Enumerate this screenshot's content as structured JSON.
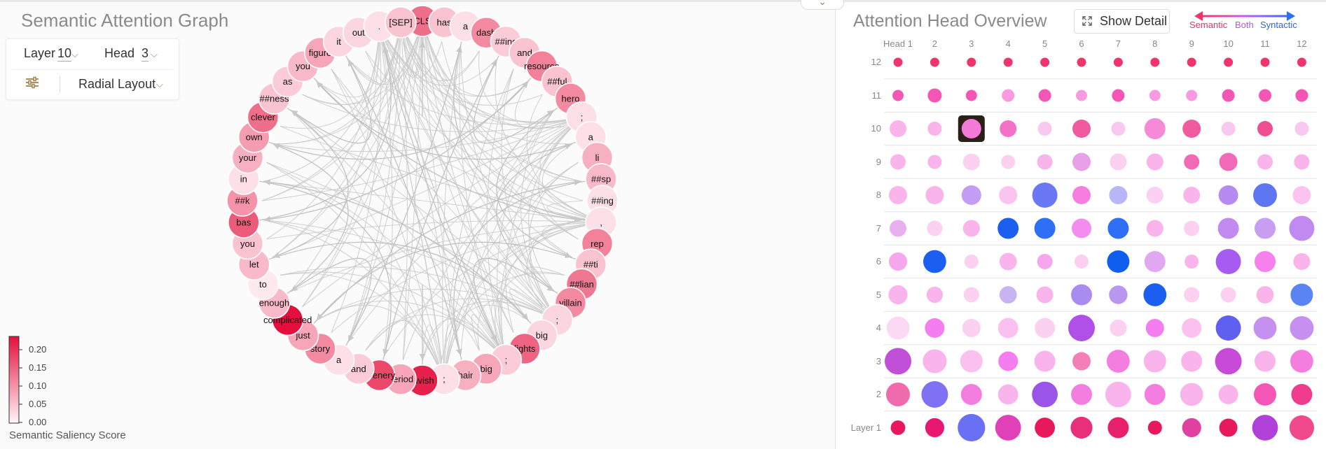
{
  "left": {
    "title": "Semantic Attention Graph",
    "controls": {
      "layer_label": "Layer",
      "layer_value": "10",
      "head_label": "Head",
      "head_value": "3",
      "layout_value": "Radial Layout",
      "settings_icon": "sliders-icon",
      "chevron_icon": "chevron-down-icon"
    },
    "tokens": [
      "[CLS]",
      "has",
      "a",
      "dash",
      "##ing",
      "and",
      "resource",
      "##ful",
      "hero",
      ";",
      "a",
      "li",
      "##sp",
      "##ing",
      ",",
      "rep",
      "##ti",
      "##lian",
      "villain",
      ";",
      "big",
      "fights",
      ";",
      "big",
      "hair",
      ";",
      "lavish",
      "period",
      "scenery",
      "and",
      "a",
      "story",
      "just",
      "complicated",
      "enough",
      "to",
      "let",
      "you",
      "bas",
      "##k",
      "in",
      "your",
      "own",
      "clever",
      "##ness",
      "as",
      "you",
      "figure",
      "it",
      "out",
      ".",
      "[SEP]"
    ],
    "saliency": [
      0.14,
      0.05,
      0.02,
      0.11,
      0.04,
      0.05,
      0.12,
      0.05,
      0.11,
      0.02,
      0.02,
      0.07,
      0.06,
      0.02,
      0.02,
      0.12,
      0.05,
      0.13,
      0.11,
      0.03,
      0.03,
      0.15,
      0.04,
      0.08,
      0.07,
      0.02,
      0.22,
      0.08,
      0.18,
      0.04,
      0.02,
      0.11,
      0.08,
      0.24,
      0.06,
      0.01,
      0.06,
      0.05,
      0.16,
      0.1,
      0.02,
      0.07,
      0.09,
      0.14,
      0.05,
      0.04,
      0.06,
      0.08,
      0.03,
      0.03,
      0.02,
      0.05
    ],
    "legend": {
      "title": "Semantic Saliency Score",
      "ticks": [
        "0.20",
        "0.15",
        "0.10",
        "0.05",
        "0.00"
      ],
      "color_low": "#fff0f4",
      "color_high": "#e40f3c"
    }
  },
  "right": {
    "title": "Attention Head Overview",
    "detail_button": "Show Detail",
    "detail_icon": "expand-icon",
    "legend": {
      "semantic": "Semantic",
      "both": "Both",
      "syntactic": "Syntactic"
    },
    "head_labels": [
      "Head 1",
      "2",
      "3",
      "4",
      "5",
      "6",
      "7",
      "8",
      "9",
      "10",
      "11",
      "12"
    ],
    "layer_labels": [
      "12",
      "11",
      "10",
      "9",
      "8",
      "7",
      "6",
      "5",
      "4",
      "3",
      "2",
      "Layer 1"
    ],
    "selected": {
      "layer": "10",
      "head": "3"
    },
    "colors": {
      "semantic": "#f0356e",
      "both": "#c95bf0",
      "syntactic": "#2f6ff5",
      "light_pink": "#fbc6ec"
    },
    "heads": [
      [
        [
          "#f0356e",
          0.3
        ],
        [
          "#f0356e",
          0.3
        ],
        [
          "#f0356e",
          0.3
        ],
        [
          "#f0356e",
          0.3
        ],
        [
          "#f0356e",
          0.3
        ],
        [
          "#f0356e",
          0.3
        ],
        [
          "#f0356e",
          0.3
        ],
        [
          "#f0356e",
          0.3
        ],
        [
          "#f0356e",
          0.3
        ],
        [
          "#f0356e",
          0.3
        ],
        [
          "#f0356e",
          0.3
        ],
        [
          "#f0356e",
          0.3
        ]
      ],
      [
        [
          "#f456b5",
          0.4
        ],
        [
          "#f456b5",
          0.5
        ],
        [
          "#f456b5",
          0.4
        ],
        [
          "#f89ae0",
          0.45
        ],
        [
          "#f456b5",
          0.45
        ],
        [
          "#f89ae0",
          0.4
        ],
        [
          "#f456b5",
          0.45
        ],
        [
          "#f89ae0",
          0.4
        ],
        [
          "#f89ae0",
          0.4
        ],
        [
          "#f456b5",
          0.45
        ],
        [
          "#f456b5",
          0.45
        ],
        [
          "#f456b5",
          0.45
        ]
      ],
      [
        [
          "#f9b4ec",
          0.6
        ],
        [
          "#f9b4ec",
          0.5
        ],
        [
          "#f37ad6",
          0.7
        ],
        [
          "#f472c6",
          0.6
        ],
        [
          "#f9c8f0",
          0.5
        ],
        [
          "#f05a9e",
          0.65
        ],
        [
          "#f9c8f0",
          0.5
        ],
        [
          "#f58ad8",
          0.75
        ],
        [
          "#f05a9e",
          0.65
        ],
        [
          "#f9c8f0",
          0.5
        ],
        [
          "#f04d94",
          0.55
        ],
        [
          "#f9c8f0",
          0.5
        ]
      ],
      [
        [
          "#f9b4ec",
          0.55
        ],
        [
          "#f9b4ec",
          0.5
        ],
        [
          "#fbd0f0",
          0.6
        ],
        [
          "#fbd0f0",
          0.5
        ],
        [
          "#f9b4ec",
          0.55
        ],
        [
          "#e8a0e8",
          0.65
        ],
        [
          "#fbd0f0",
          0.6
        ],
        [
          "#f9b4ec",
          0.6
        ],
        [
          "#f06ab8",
          0.55
        ],
        [
          "#f06ab8",
          0.65
        ],
        [
          "#f9b4ec",
          0.55
        ],
        [
          "#f9b4ec",
          0.55
        ]
      ],
      [
        [
          "#f9b4ec",
          0.65
        ],
        [
          "#f9b4ec",
          0.65
        ],
        [
          "#c39cf4",
          0.7
        ],
        [
          "#fbc4f0",
          0.65
        ],
        [
          "#6b78f4",
          0.9
        ],
        [
          "#f57ee0",
          0.65
        ],
        [
          "#b8b6f6",
          0.65
        ],
        [
          "#fbd0f0",
          0.6
        ],
        [
          "#f9b4ec",
          0.6
        ],
        [
          "#b68af0",
          0.7
        ],
        [
          "#5f76f2",
          0.85
        ],
        [
          "#fbc4f0",
          0.65
        ]
      ],
      [
        [
          "#e8b0ee",
          0.6
        ],
        [
          "#fbd0f0",
          0.55
        ],
        [
          "#f9b4ec",
          0.6
        ],
        [
          "#1b5ef0",
          0.75
        ],
        [
          "#2f6ff5",
          0.75
        ],
        [
          "#f28cef",
          0.7
        ],
        [
          "#2f6ff5",
          0.75
        ],
        [
          "#f9b4ec",
          0.6
        ],
        [
          "#fbd0f0",
          0.55
        ],
        [
          "#c08af0",
          0.75
        ],
        [
          "#c79ef2",
          0.75
        ],
        [
          "#c08af0",
          0.9
        ]
      ],
      [
        [
          "#f6a6ec",
          0.65
        ],
        [
          "#1b5ef0",
          0.82
        ],
        [
          "#fbd0f0",
          0.5
        ],
        [
          "#f9b4ec",
          0.62
        ],
        [
          "#f6a6ec",
          0.55
        ],
        [
          "#fbd0f0",
          0.5
        ],
        [
          "#0f5ef0",
          0.8
        ],
        [
          "#e0a8f0",
          0.75
        ],
        [
          "#f9b4ec",
          0.5
        ],
        [
          "#a65cf0",
          0.9
        ],
        [
          "#f780ef",
          0.75
        ],
        [
          "#f9b4ec",
          0.6
        ]
      ],
      [
        [
          "#f9b4ec",
          0.68
        ],
        [
          "#f9b4ec",
          0.58
        ],
        [
          "#fbd0f0",
          0.55
        ],
        [
          "#c9b4f2",
          0.62
        ],
        [
          "#f9b4ec",
          0.6
        ],
        [
          "#a88cf0",
          0.75
        ],
        [
          "#b996f0",
          0.66
        ],
        [
          "#1b5ef0",
          0.82
        ],
        [
          "#fbd0f0",
          0.55
        ],
        [
          "#fbd0f0",
          0.55
        ],
        [
          "#f9b4ec",
          0.62
        ],
        [
          "#5a84f4",
          0.8
        ]
      ],
      [
        [
          "#fbd9f4",
          0.82
        ],
        [
          "#f47ef0",
          0.7
        ],
        [
          "#fbd0f0",
          0.65
        ],
        [
          "#f9c0f0",
          0.72
        ],
        [
          "#fbd0f0",
          0.72
        ],
        [
          "#b050e8",
          0.95
        ],
        [
          "#fbd0f0",
          0.6
        ],
        [
          "#f47ef0",
          0.65
        ],
        [
          "#f9c0f0",
          0.7
        ],
        [
          "#6060f0",
          0.9
        ],
        [
          "#c590f0",
          0.82
        ],
        [
          "#c590f0",
          0.85
        ]
      ],
      [
        [
          "#c050d8",
          0.95
        ],
        [
          "#f9b4ec",
          0.85
        ],
        [
          "#f9c0f0",
          0.8
        ],
        [
          "#f47ef0",
          0.7
        ],
        [
          "#f9b4ec",
          0.75
        ],
        [
          "#f47eb8",
          0.65
        ],
        [
          "#f47ee0",
          0.82
        ],
        [
          "#f9b4ec",
          0.8
        ],
        [
          "#f9b4ec",
          0.75
        ],
        [
          "#c84ad8",
          0.95
        ],
        [
          "#f9b4ec",
          0.75
        ],
        [
          "#f47ee0",
          0.82
        ]
      ],
      [
        [
          "#f06aae",
          0.85
        ],
        [
          "#8070f4",
          0.95
        ],
        [
          "#f47ee0",
          0.75
        ],
        [
          "#f9b4ec",
          0.72
        ],
        [
          "#9a55e8",
          0.92
        ],
        [
          "#f47ee0",
          0.75
        ],
        [
          "#f9b4ec",
          0.92
        ],
        [
          "#f47ee0",
          0.75
        ],
        [
          "#f9b4ec",
          0.82
        ],
        [
          "#f9b4ec",
          0.7
        ],
        [
          "#f456b5",
          0.8
        ],
        [
          "#f03c8e",
          0.75
        ]
      ],
      [
        [
          "#e8185c",
          0.52
        ],
        [
          "#e81870",
          0.68
        ],
        [
          "#6a70f4",
          0.98
        ],
        [
          "#e040b8",
          0.92
        ],
        [
          "#e8185c",
          0.72
        ],
        [
          "#e8307a",
          0.78
        ],
        [
          "#e8206c",
          0.75
        ],
        [
          "#e8185c",
          0.5
        ],
        [
          "#e040a0",
          0.68
        ],
        [
          "#e8185c",
          0.65
        ],
        [
          "#b040d8",
          0.92
        ],
        [
          "#f04a8c",
          0.88
        ]
      ]
    ]
  }
}
